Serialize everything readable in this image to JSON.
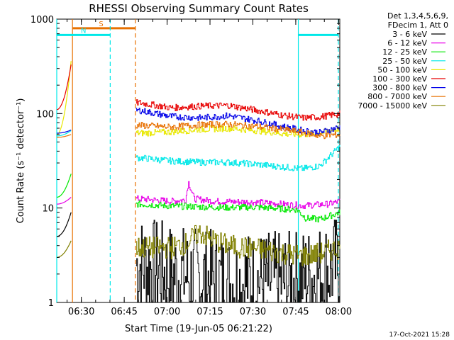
{
  "chart_data": {
    "type": "line",
    "title": "RHESSI Observing Summary Count Rates",
    "xlabel": "Start Time (19-Jun-05 06:21:22)",
    "ylabel": "Count Rate (s⁻¹ detector⁻¹)",
    "yscale": "log",
    "ylim": [
      1,
      1000
    ],
    "xlim_minutes": [
      0,
      99
    ],
    "x_tick_minutes": [
      8.6,
      23.6,
      38.6,
      53.6,
      68.6,
      83.6,
      98.6
    ],
    "x_tick_labels": [
      "06:30",
      "06:45",
      "07:00",
      "07:15",
      "07:30",
      "07:45",
      "08:00"
    ],
    "y_tick_values": [
      1,
      10,
      100,
      1000
    ],
    "y_tick_labels": [
      "1",
      "10",
      "100",
      "1000"
    ],
    "legend_header": [
      "Det 1,3,4,5,6,9,",
      "FDecim 1, Att 0"
    ],
    "timestamp": "17-Oct-2021 15:28",
    "data_gaps_minutes": [
      [
        5,
        27.5
      ],
      [
        84.5,
        99
      ]
    ],
    "markers": [
      {
        "label": "S",
        "color": "#e87000",
        "solid_at": 5.5,
        "dashed_at": 27.5,
        "bar_level": 800
      },
      {
        "label": "N",
        "color": "#00e8e8",
        "solid_at": 0,
        "dashed_at": 18.7,
        "bar_level": 680
      },
      {
        "label": "",
        "color": "#00e8e8",
        "solid_at": 84.5,
        "dashed_at": 98.5,
        "bar_level": 680
      }
    ],
    "series": [
      {
        "name": "3 - 6 keV",
        "color": "#000000",
        "pre": [
          5,
          9
        ],
        "x": [
          29,
          40,
          50,
          60,
          70,
          80,
          86,
          90,
          97
        ],
        "values": [
          2.5,
          2.0,
          1.8,
          1.6,
          1.7,
          1.6,
          1.8,
          1.9,
          2.4
        ]
      },
      {
        "name": "6 - 12 keV",
        "color": "#e800e8",
        "pre": [
          11,
          13
        ],
        "x": [
          29,
          40,
          45,
          46,
          48,
          55,
          70,
          86,
          95,
          99
        ],
        "values": [
          12.5,
          11.8,
          12.2,
          19,
          12.5,
          11.8,
          11.5,
          10.6,
          11,
          11.8
        ]
      },
      {
        "name": "12 - 25 keV",
        "color": "#00e800",
        "pre": [
          13,
          23
        ],
        "x": [
          29,
          40,
          50,
          60,
          70,
          84,
          87,
          92,
          99
        ],
        "values": [
          11,
          10.5,
          10.3,
          10.1,
          10.2,
          9.6,
          7.8,
          7.6,
          9.0
        ]
      },
      {
        "name": "25 - 50 keV",
        "color": "#00e8e8",
        "pre": [
          58,
          66
        ],
        "x": [
          29,
          40,
          50,
          60,
          70,
          80,
          86,
          92,
          99
        ],
        "values": [
          34,
          31.5,
          30.5,
          30.5,
          29,
          27,
          26,
          28,
          45
        ]
      },
      {
        "name": "50 - 100 keV",
        "color": "#e8e800",
        "pre": [
          60,
          360
        ],
        "x": [
          29,
          40,
          50,
          60,
          70,
          80,
          86,
          92,
          99
        ],
        "values": [
          62,
          64,
          68,
          70,
          66,
          61,
          60,
          62,
          70
        ]
      },
      {
        "name": "100 - 300 keV",
        "color": "#e80000",
        "pre": [
          110,
          330
        ],
        "x": [
          29,
          40,
          50,
          60,
          70,
          80,
          86,
          92,
          99
        ],
        "values": [
          130,
          115,
          120,
          122,
          108,
          95,
          90,
          92,
          100
        ]
      },
      {
        "name": "300 - 800 keV",
        "color": "#0000e8",
        "pre": [
          62,
          67
        ],
        "x": [
          29,
          40,
          50,
          60,
          70,
          80,
          86,
          92,
          99
        ],
        "values": [
          108,
          93,
          90,
          95,
          84,
          72,
          66,
          63,
          72
        ]
      },
      {
        "name": "800 - 7000 keV",
        "color": "#e87000",
        "pre": [
          56,
          60
        ],
        "x": [
          29,
          40,
          50,
          60,
          70,
          80,
          86,
          92,
          99
        ],
        "values": [
          75,
          72,
          76,
          77,
          73,
          67,
          63,
          58,
          60
        ]
      },
      {
        "name": "7000 - 15000 keV",
        "color": "#808000",
        "pre": [
          3.0,
          4.5
        ],
        "x": [
          29,
          40,
          45,
          50,
          55,
          60,
          65,
          70,
          80,
          86,
          92,
          99
        ],
        "values": [
          3.8,
          3.8,
          4.2,
          5.5,
          4.5,
          4.0,
          3.8,
          3.7,
          3.3,
          3.1,
          3.3,
          3.8
        ]
      }
    ]
  }
}
